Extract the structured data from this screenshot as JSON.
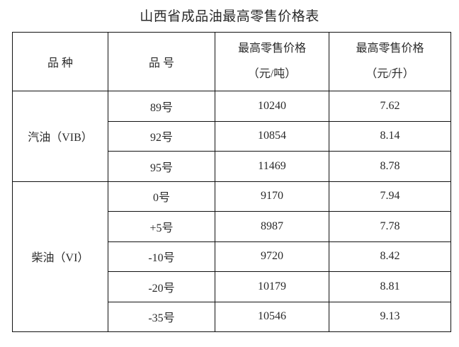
{
  "title": "山西省成品油最高零售价格表",
  "headers": {
    "kind": "品 种",
    "grade": "品 号",
    "price_ton": [
      "最高零售价格",
      "（元/吨）"
    ],
    "price_liter": [
      "最高零售价格",
      "（元/升）"
    ]
  },
  "groups": [
    {
      "kind": "汽油（VIB）",
      "rows": [
        {
          "grade": "89号",
          "ton": "10240",
          "liter": "7.62"
        },
        {
          "grade": "92号",
          "ton": "10854",
          "liter": "8.14"
        },
        {
          "grade": "95号",
          "ton": "11469",
          "liter": "8.78"
        }
      ]
    },
    {
      "kind": "柴油（VI）",
      "rows": [
        {
          "grade": "0号",
          "ton": "9170",
          "liter": "7.94"
        },
        {
          "grade": "+5号",
          "ton": "8987",
          "liter": "7.78"
        },
        {
          "grade": "-10号",
          "ton": "9720",
          "liter": "8.42"
        },
        {
          "grade": "-20号",
          "ton": "10179",
          "liter": "8.81"
        },
        {
          "grade": "-35号",
          "ton": "10546",
          "liter": "9.13"
        }
      ]
    }
  ]
}
